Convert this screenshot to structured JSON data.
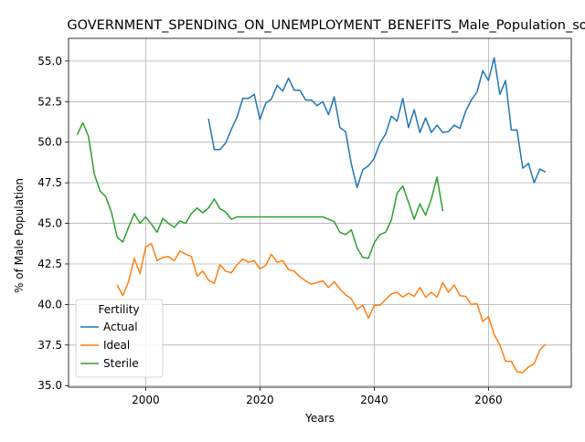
{
  "chart_data": {
    "type": "line",
    "title": "GOVERNMENT_SPENDING_ON_UNEMPLOYMENT_BENEFITS_Male_Population_so",
    "xlabel": "Years",
    "ylabel": "% of Male Population",
    "xlim": [
      1986.5,
      2074.5
    ],
    "ylim": [
      34.9,
      56.4
    ],
    "xticks": [
      2000,
      2020,
      2040,
      2060
    ],
    "yticks": [
      35.0,
      37.5,
      40.0,
      42.5,
      45.0,
      47.5,
      50.0,
      52.5,
      55.0
    ],
    "grid": true,
    "legend": {
      "title": "Fertility",
      "placement": "lower-left"
    },
    "series": [
      {
        "name": "Actual",
        "color": "#1f77b4",
        "x": [
          2011,
          2012,
          2013,
          2014,
          2015,
          2016,
          2017,
          2018,
          2019,
          2020,
          2021,
          2022,
          2023,
          2024,
          2025,
          2026,
          2027,
          2028,
          2029,
          2030,
          2031,
          2032,
          2033,
          2034,
          2035,
          2036,
          2037,
          2038,
          2039,
          2040,
          2041,
          2042,
          2043,
          2044,
          2045,
          2046,
          2047,
          2048,
          2049,
          2050,
          2051,
          2052,
          2053,
          2054,
          2055,
          2056,
          2057,
          2058,
          2059,
          2060,
          2061,
          2062,
          2063,
          2064,
          2065,
          2066,
          2067,
          2068,
          2069,
          2070
        ],
        "y": [
          51.45,
          49.55,
          49.55,
          49.95,
          50.8,
          51.55,
          52.7,
          52.7,
          52.95,
          51.4,
          52.4,
          52.65,
          53.5,
          53.15,
          53.95,
          53.2,
          53.2,
          52.6,
          52.6,
          52.25,
          52.5,
          51.7,
          52.8,
          50.9,
          50.65,
          48.65,
          47.2,
          48.3,
          48.55,
          49.0,
          49.95,
          50.5,
          51.6,
          51.3,
          52.7,
          50.9,
          52.0,
          50.6,
          51.5,
          50.6,
          51.05,
          50.6,
          50.65,
          51.05,
          50.85,
          51.9,
          52.6,
          53.1,
          54.4,
          53.8,
          55.2,
          52.95,
          53.8,
          50.75,
          50.75,
          48.4,
          48.7,
          47.5,
          48.35,
          48.15
        ]
      },
      {
        "name": "Ideal",
        "color": "#ff7f0e",
        "x": [
          1995,
          1996,
          1997,
          1998,
          1999,
          2000,
          2001,
          2002,
          2003,
          2004,
          2005,
          2006,
          2007,
          2008,
          2009,
          2010,
          2011,
          2012,
          2013,
          2014,
          2015,
          2016,
          2017,
          2018,
          2019,
          2020,
          2021,
          2022,
          2023,
          2024,
          2025,
          2026,
          2027,
          2028,
          2029,
          2030,
          2031,
          2032,
          2033,
          2034,
          2035,
          2036,
          2037,
          2038,
          2039,
          2040,
          2041,
          2042,
          2043,
          2044,
          2045,
          2046,
          2047,
          2048,
          2049,
          2050,
          2051,
          2052,
          2053,
          2054,
          2055,
          2056,
          2057,
          2058,
          2059,
          2060,
          2061,
          2062,
          2063,
          2064,
          2065,
          2066,
          2067,
          2068,
          2069,
          2070
        ],
        "y": [
          41.2,
          40.55,
          41.4,
          42.85,
          41.9,
          43.55,
          43.75,
          42.7,
          42.9,
          42.95,
          42.7,
          43.3,
          43.1,
          42.95,
          41.75,
          42.05,
          41.5,
          41.3,
          42.45,
          42.05,
          41.95,
          42.45,
          42.8,
          42.6,
          42.7,
          42.2,
          42.4,
          43.1,
          42.6,
          42.7,
          42.15,
          42.05,
          41.7,
          41.45,
          41.25,
          41.35,
          41.45,
          41.05,
          41.4,
          40.95,
          40.6,
          40.35,
          39.7,
          39.95,
          39.15,
          39.95,
          39.95,
          40.3,
          40.65,
          40.75,
          40.45,
          40.7,
          40.5,
          41.05,
          40.45,
          40.75,
          40.45,
          41.35,
          40.75,
          41.2,
          40.55,
          40.5,
          40.0,
          40.05,
          38.95,
          39.25,
          38.15,
          37.5,
          36.5,
          36.5,
          35.85,
          35.8,
          36.15,
          36.35,
          37.2,
          37.55
        ]
      },
      {
        "name": "Sterile",
        "color": "#2ca02c",
        "x": [
          1988,
          1989,
          1990,
          1991,
          1992,
          1993,
          1994,
          1995,
          1996,
          1997,
          1998,
          1999,
          2000,
          2001,
          2002,
          2003,
          2004,
          2005,
          2006,
          2007,
          2008,
          2009,
          2010,
          2011,
          2012,
          2013,
          2014,
          2015,
          2016,
          2017,
          2018,
          2019,
          2020,
          2021,
          2022,
          2023,
          2024,
          2025,
          2026,
          2027,
          2028,
          2029,
          2030,
          2031,
          2032,
          2033,
          2034,
          2035,
          2036,
          2037,
          2038,
          2039,
          2040,
          2041,
          2042,
          2043,
          2044,
          2045,
          2046,
          2047,
          2048,
          2049,
          2050,
          2051,
          2052
        ],
        "y": [
          50.45,
          51.2,
          50.35,
          48.05,
          47.0,
          46.65,
          45.7,
          44.15,
          43.85,
          44.75,
          45.6,
          45.0,
          45.4,
          44.95,
          44.45,
          45.3,
          45.0,
          44.75,
          45.15,
          45.0,
          45.6,
          45.95,
          45.65,
          45.95,
          46.5,
          45.9,
          45.7,
          45.25,
          45.4,
          45.4,
          45.4,
          45.4,
          45.4,
          45.4,
          45.4,
          45.4,
          45.4,
          45.4,
          45.4,
          45.4,
          45.4,
          45.4,
          45.4,
          45.4,
          45.25,
          45.1,
          44.45,
          44.3,
          44.6,
          43.5,
          42.9,
          42.85,
          43.8,
          44.3,
          44.45,
          45.2,
          46.85,
          47.3,
          46.3,
          45.25,
          46.2,
          45.5,
          46.5,
          47.85,
          45.75
        ]
      }
    ]
  }
}
